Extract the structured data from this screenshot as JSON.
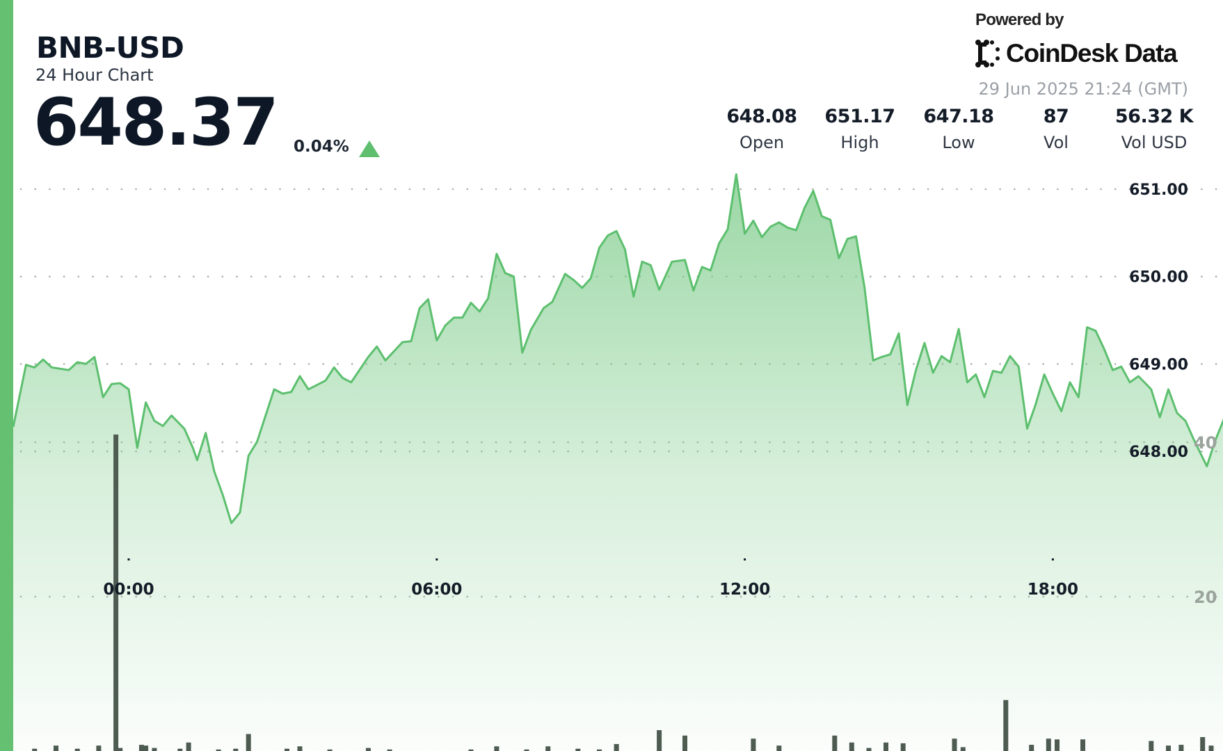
{
  "header": {
    "symbol": "BNB-USD",
    "subtitle": "24 Hour Chart",
    "price": "648.37",
    "change_pct": "0.04%",
    "change_direction": "up",
    "powered_by": "Powered by",
    "brand": "CoinDesk Data",
    "timestamp": "29 Jun 2025 21:24 (GMT)"
  },
  "stats": [
    {
      "value": "648.08",
      "label": "Open"
    },
    {
      "value": "651.17",
      "label": "High"
    },
    {
      "value": "647.18",
      "label": "Low"
    },
    {
      "value": "87",
      "label": "Vol"
    },
    {
      "value": "56.32 K",
      "label": "Vol USD"
    }
  ],
  "colors": {
    "accent": "#65c072",
    "line": "#5cbf6e",
    "fill": "#7ccb89",
    "volume_bar": "#4d5b51",
    "grid": "#a9aea9"
  },
  "icons": {
    "change": "triangle-up-icon",
    "brand_logo": "coindesk-logo-icon"
  },
  "chart_data": {
    "type": "line",
    "price": {
      "x": [
        "21:45",
        "22:00",
        "22:10",
        "22:20",
        "22:30",
        "22:50",
        "23:00",
        "23:10",
        "23:20",
        "23:30",
        "23:40",
        "23:50",
        "00:00",
        "00:10",
        "00:20",
        "00:30",
        "00:40",
        "00:50",
        "01:05",
        "01:15",
        "01:20",
        "01:30",
        "01:40",
        "01:50",
        "02:00",
        "02:10",
        "02:20",
        "02:30",
        "02:50",
        "03:00",
        "03:10",
        "03:20",
        "03:30",
        "03:50",
        "04:00",
        "04:10",
        "04:20",
        "04:40",
        "04:50",
        "05:00",
        "05:20",
        "05:30",
        "05:40",
        "05:50",
        "06:00",
        "06:10",
        "06:20",
        "06:30",
        "06:40",
        "06:50",
        "07:00",
        "07:10",
        "07:20",
        "07:30",
        "07:40",
        "07:50",
        "08:05",
        "08:15",
        "08:30",
        "08:40",
        "08:50",
        "09:00",
        "09:10",
        "09:20",
        "09:30",
        "09:40",
        "09:50",
        "10:00",
        "10:10",
        "10:20",
        "10:35",
        "10:50",
        "11:00",
        "11:10",
        "11:20",
        "11:30",
        "11:40",
        "11:50",
        "12:00",
        "12:10",
        "12:20",
        "12:30",
        "12:40",
        "12:50",
        "13:00",
        "13:10",
        "13:20",
        "13:30",
        "13:40",
        "13:50",
        "14:00",
        "14:10",
        "14:20",
        "14:30",
        "14:40",
        "14:50",
        "15:00",
        "15:10",
        "15:20",
        "15:30",
        "15:40",
        "15:50",
        "16:00",
        "16:10",
        "16:20",
        "16:30",
        "16:40",
        "16:50",
        "17:00",
        "17:10",
        "17:20",
        "17:30",
        "17:40",
        "17:50",
        "18:00",
        "18:10",
        "18:20",
        "18:30",
        "18:40",
        "18:50",
        "19:00",
        "19:10",
        "19:20",
        "19:30",
        "19:40",
        "19:55",
        "20:05",
        "20:15",
        "20:25",
        "20:35",
        "20:45",
        "21:00",
        "21:10",
        "21:20"
      ],
      "values": [
        648.28,
        648.99,
        648.96,
        649.05,
        648.96,
        648.93,
        649.02,
        649.0,
        649.08,
        648.62,
        648.77,
        648.78,
        648.71,
        648.04,
        648.56,
        648.35,
        648.29,
        648.41,
        648.26,
        648.04,
        647.9,
        648.21,
        647.77,
        647.5,
        647.18,
        647.3,
        647.95,
        648.11,
        648.71,
        648.66,
        648.68,
        648.86,
        648.71,
        648.81,
        648.96,
        648.84,
        648.79,
        649.08,
        649.2,
        649.04,
        649.25,
        649.26,
        649.64,
        649.74,
        649.27,
        649.44,
        649.53,
        649.53,
        649.7,
        649.6,
        649.75,
        650.26,
        650.04,
        650.0,
        649.13,
        649.39,
        649.64,
        649.71,
        650.03,
        649.96,
        649.87,
        649.98,
        650.33,
        650.47,
        650.52,
        650.31,
        649.77,
        650.17,
        650.13,
        649.85,
        650.17,
        650.19,
        649.84,
        650.11,
        650.07,
        650.38,
        650.54,
        651.17,
        650.49,
        650.64,
        650.45,
        650.57,
        650.62,
        650.56,
        650.53,
        650.79,
        650.98,
        650.69,
        650.65,
        650.21,
        650.43,
        650.46,
        649.87,
        649.04,
        649.08,
        649.11,
        649.35,
        648.53,
        648.93,
        649.24,
        648.9,
        649.09,
        649.02,
        649.4,
        648.79,
        648.88,
        648.62,
        648.92,
        648.9,
        649.09,
        648.97,
        648.26,
        648.54,
        648.88,
        648.66,
        648.46,
        648.79,
        648.62,
        649.42,
        649.38,
        649.17,
        648.93,
        648.97,
        648.79,
        648.86,
        648.71,
        648.39,
        648.71,
        648.44,
        648.35,
        648.13,
        647.83,
        648.13,
        648.37
      ],
      "y_ticks": [
        "651.00",
        "650.00",
        "649.00",
        "648.00"
      ],
      "y_tick_values": [
        651,
        650,
        649,
        648
      ]
    },
    "volume": {
      "type": "bar",
      "x": [
        "22:10",
        "22:35",
        "23:00",
        "23:25",
        "23:45",
        "23:50",
        "00:15",
        "00:20",
        "00:30",
        "01:00",
        "01:10",
        "01:45",
        "02:05",
        "02:20",
        "03:05",
        "03:20",
        "03:55",
        "04:40",
        "05:05",
        "06:40",
        "07:10",
        "07:45",
        "08:10",
        "08:45",
        "09:10",
        "09:30",
        "10:20",
        "10:50",
        "12:10",
        "12:40",
        "13:45",
        "14:05",
        "14:25",
        "14:45",
        "15:05",
        "16:05",
        "16:15",
        "17:05",
        "17:35",
        "17:55",
        "18:05",
        "18:35",
        "19:55",
        "20:15",
        "20:30",
        "20:55",
        "21:05"
      ],
      "values": [
        0.3,
        0.7,
        0.3,
        0.7,
        41,
        0.4,
        0.8,
        0.7,
        0.4,
        0.3,
        1.1,
        0.2,
        0.3,
        2.2,
        0.3,
        0.6,
        0.2,
        0.4,
        0.2,
        0.2,
        0.6,
        0.2,
        0.6,
        0.3,
        0.2,
        0.9,
        2.7,
        2.0,
        1.6,
        0.7,
        2.0,
        1.1,
        0.4,
        1.1,
        1.0,
        1.6,
        0.5,
        6.6,
        0.8,
        1.6,
        1.5,
        1.5,
        1.3,
        0.7,
        0.8,
        1.8,
        0.7
      ],
      "y_ticks": [
        "40",
        "20"
      ],
      "y_tick_values": [
        40,
        20
      ]
    },
    "x_ticks": [
      "00:00",
      "06:00",
      "12:00",
      "18:00"
    ],
    "grid": "dotted horizontal",
    "legend": "none"
  }
}
